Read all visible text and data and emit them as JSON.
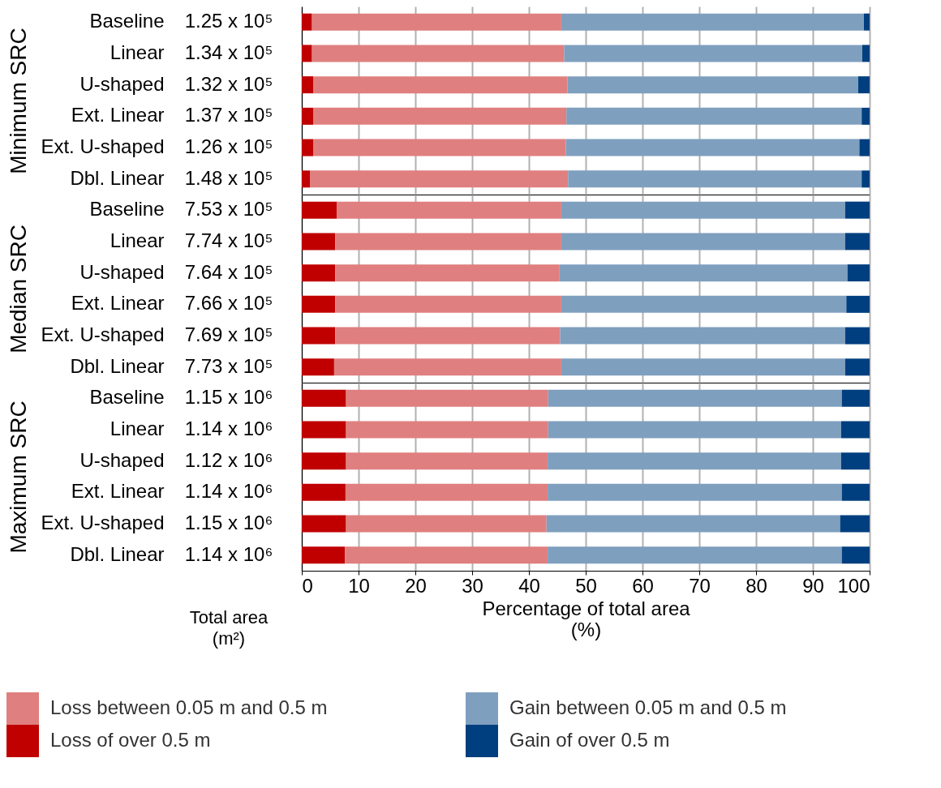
{
  "chart_data": [
    {
      "type": "bar",
      "orientation": "horizontal",
      "stacked": true,
      "ylabel": "Minimum SRC",
      "categories": [
        "Baseline",
        "Linear",
        "U-shaped",
        "Ext. Linear",
        "Ext. U-shaped",
        "Dbl. Linear"
      ],
      "xlim": [
        0,
        100
      ],
      "xticks": [
        0,
        10,
        20,
        30,
        40,
        50,
        60,
        70,
        80,
        90,
        100
      ],
      "grid": "x",
      "tick_labels": "y",
      "legend": false,
      "series": [
        {
          "color": "#c00000",
          "values": [
            1.8,
            1.8,
            2.0,
            2.0,
            2.0,
            1.5
          ]
        },
        {
          "color": "#e07f7f",
          "values": [
            43.9,
            44.4,
            44.8,
            44.6,
            44.5,
            45.4
          ]
        },
        {
          "color": "#7f9fbf",
          "values": [
            53.3,
            52.5,
            51.2,
            52.0,
            51.7,
            51.7
          ]
        },
        {
          "color": "#003f7f",
          "values": [
            1.0,
            1.3,
            2.0,
            1.4,
            1.8,
            1.4
          ]
        }
      ],
      "annotations": [
        "1.25 x 10⁵",
        "1.34 x 10⁵",
        "1.32 x 10⁵",
        "1.37 x 10⁵",
        "1.26 x 10⁵",
        "1.48 x 10⁵"
      ]
    },
    {
      "type": "bar",
      "orientation": "horizontal",
      "stacked": true,
      "ylabel": "Median SRC",
      "categories": [
        "Baseline",
        "Linear",
        "U-shaped",
        "Ext. Linear",
        "Ext. U-shaped",
        "Dbl. Linear"
      ],
      "xlim": [
        0,
        100
      ],
      "xticks": [
        0,
        10,
        20,
        30,
        40,
        50,
        60,
        70,
        80,
        90,
        100
      ],
      "grid": "x",
      "tick_labels": "y",
      "legend": false,
      "series": [
        {
          "color": "#c00000",
          "values": [
            6.2,
            5.9,
            5.9,
            5.9,
            5.9,
            5.7
          ]
        },
        {
          "color": "#e07f7f",
          "values": [
            39.5,
            39.8,
            39.5,
            39.8,
            39.6,
            40.0
          ]
        },
        {
          "color": "#7f9fbf",
          "values": [
            50.0,
            50.0,
            50.7,
            50.2,
            50.2,
            50.0
          ]
        },
        {
          "color": "#003f7f",
          "values": [
            4.3,
            4.3,
            3.9,
            4.1,
            4.3,
            4.3
          ]
        }
      ],
      "annotations": [
        "7.53 x 10⁵",
        "7.74 x 10⁵",
        "7.64 x 10⁵",
        "7.66 x 10⁵",
        "7.69 x 10⁵",
        "7.73 x 10⁵"
      ]
    },
    {
      "type": "bar",
      "orientation": "horizontal",
      "stacked": true,
      "ylabel": "Maximum SRC",
      "xlabel": "Percentage of total area\n(%)",
      "categories": [
        "Baseline",
        "Linear",
        "U-shaped",
        "Ext. Linear",
        "Ext. U-shaped",
        "Dbl. Linear"
      ],
      "xlim": [
        0,
        100
      ],
      "xticks": [
        0,
        10,
        20,
        30,
        40,
        50,
        60,
        70,
        80,
        90,
        100
      ],
      "grid": "x",
      "legend": "bottom",
      "series": [
        {
          "name": "Loss of over 0.5 m",
          "color": "#c00000",
          "values": [
            7.8,
            7.8,
            7.8,
            7.7,
            7.8,
            7.6
          ]
        },
        {
          "name": "Loss between 0.05 m and 0.5 m",
          "color": "#e07f7f",
          "values": [
            35.6,
            35.6,
            35.5,
            35.6,
            35.3,
            35.7
          ]
        },
        {
          "name": "Gain between 0.05 m and 0.5 m",
          "color": "#7f9fbf",
          "values": [
            51.7,
            51.6,
            51.7,
            51.8,
            51.7,
            51.8
          ]
        },
        {
          "name": "Gain of over 0.5 m",
          "color": "#003f7f",
          "values": [
            4.9,
            5.0,
            5.0,
            4.9,
            5.2,
            4.9
          ]
        }
      ],
      "annotations": [
        "1.15 x 10⁶",
        "1.14 x 10⁶",
        "1.12 x 10⁶",
        "1.14 x 10⁶",
        "1.15 x 10⁶",
        "1.14 x 10⁶",
        "Total area\n(m²)"
      ]
    }
  ]
}
